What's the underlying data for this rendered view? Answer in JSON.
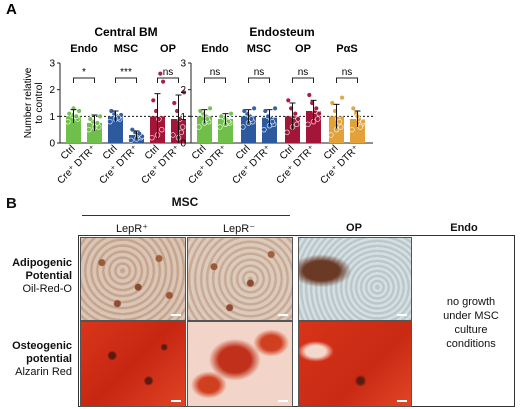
{
  "figure": {
    "panel_a_letter": "A",
    "panel_b_letter": "B"
  },
  "chart_data": [
    {
      "type": "bar",
      "title": "Central BM",
      "ylabel": "Number relative to control",
      "ylim": [
        0,
        3
      ],
      "yticks": [
        0,
        1,
        2,
        3
      ],
      "reference_line": 1,
      "groups": [
        {
          "name": "Endo",
          "color": "#6fbf4a",
          "significance": "*",
          "categories": [
            "Ctrl",
            "Cre⁺ DTR⁺"
          ],
          "values": [
            1.0,
            0.75
          ],
          "errors": [
            0.25,
            0.3
          ],
          "points": [
            [
              0.8,
              0.9,
              1.0,
              1.05,
              1.1,
              1.2,
              1.0,
              1.3
            ],
            [
              0.5,
              0.6,
              0.7,
              0.8,
              0.9,
              1.0,
              0.75,
              0.6
            ]
          ]
        },
        {
          "name": "MSC",
          "color": "#2d5a9e",
          "significance": "***",
          "categories": [
            "Ctrl",
            "Cre⁺ DTR⁺"
          ],
          "values": [
            1.0,
            0.3
          ],
          "errors": [
            0.2,
            0.15
          ],
          "points": [
            [
              0.8,
              0.9,
              1.0,
              1.1,
              1.2,
              1.05,
              0.95,
              0.9
            ],
            [
              0.1,
              0.2,
              0.3,
              0.4,
              0.5,
              0.25,
              0.35,
              0.15
            ]
          ]
        },
        {
          "name": "OP",
          "color": "#a3163a",
          "significance": "ns",
          "categories": [
            "Ctrl",
            "Cre⁺ DTR⁺"
          ],
          "values": [
            1.0,
            0.9
          ],
          "errors": [
            0.85,
            0.9
          ],
          "points": [
            [
              0.2,
              0.5,
              0.9,
              1.2,
              1.6,
              2.3,
              2.6,
              0.3
            ],
            [
              0.3,
              0.6,
              0.9,
              1.2,
              1.5,
              1.9,
              0.4,
              0.2
            ]
          ]
        }
      ]
    },
    {
      "type": "bar",
      "title": "Endosteum",
      "ylabel": "",
      "ylim": [
        0,
        3
      ],
      "yticks": [
        0,
        1,
        2,
        3
      ],
      "reference_line": 1,
      "groups": [
        {
          "name": "Endo",
          "color": "#6fbf4a",
          "significance": "ns",
          "categories": [
            "Ctrl",
            "Cre⁺ DTR⁺"
          ],
          "values": [
            1.0,
            0.9
          ],
          "errors": [
            0.25,
            0.2
          ],
          "points": [
            [
              0.6,
              0.8,
              1.0,
              1.1,
              1.2,
              1.3,
              0.9,
              0.75
            ],
            [
              0.6,
              0.75,
              0.85,
              0.95,
              1.0,
              1.1,
              0.8,
              0.7
            ]
          ]
        },
        {
          "name": "MSC",
          "color": "#2d5a9e",
          "significance": "ns",
          "categories": [
            "Ctrl",
            "Cre⁺ DTR⁺"
          ],
          "values": [
            1.0,
            0.95
          ],
          "errors": [
            0.25,
            0.3
          ],
          "points": [
            [
              0.6,
              0.8,
              1.0,
              1.1,
              1.2,
              1.3,
              0.9,
              0.75
            ],
            [
              0.5,
              0.7,
              0.9,
              1.0,
              1.2,
              1.3,
              0.8,
              0.65
            ]
          ]
        },
        {
          "name": "OP",
          "color": "#a3163a",
          "significance": "ns",
          "categories": [
            "Ctrl",
            "Cre⁺ DTR⁺"
          ],
          "values": [
            1.0,
            1.2
          ],
          "errors": [
            0.5,
            0.4
          ],
          "points": [
            [
              0.4,
              0.7,
              1.0,
              1.3,
              1.6,
              0.9,
              1.1,
              0.6
            ],
            [
              0.7,
              0.9,
              1.2,
              1.5,
              1.8,
              1.1,
              1.3,
              0.8
            ]
          ]
        },
        {
          "name": "PαS",
          "color": "#e3a13a",
          "significance": "ns",
          "categories": [
            "Ctrl",
            "Cre⁺ DTR⁺"
          ],
          "values": [
            1.0,
            0.9
          ],
          "errors": [
            0.45,
            0.3
          ],
          "points": [
            [
              0.3,
              0.6,
              0.9,
              1.2,
              1.5,
              1.7,
              0.8,
              0.5
            ],
            [
              0.5,
              0.7,
              0.9,
              1.1,
              1.3,
              0.8,
              0.6,
              1.0
            ]
          ]
        }
      ]
    }
  ],
  "panel_b": {
    "group_header": "MSC",
    "columns": [
      "LepR⁺",
      "LepR⁻",
      "OP",
      "Endo"
    ],
    "rows": [
      {
        "title": "Adipogenic Potential",
        "stain": "Oil-Red-O"
      },
      {
        "title": "Osteogenic potential",
        "stain": "Alzarin Red"
      }
    ],
    "no_growth_text": "no growth under MSC culture conditions"
  }
}
